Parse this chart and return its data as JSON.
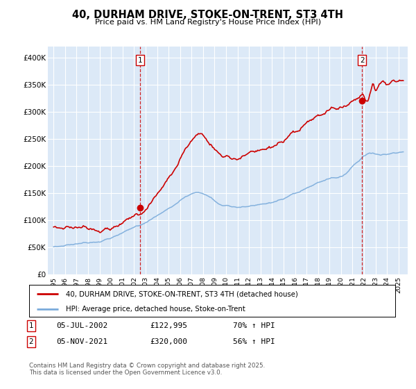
{
  "title": "40, DURHAM DRIVE, STOKE-ON-TRENT, ST3 4TH",
  "subtitle": "Price paid vs. HM Land Registry's House Price Index (HPI)",
  "background_color": "#ffffff",
  "plot_bg_color": "#dce9f7",
  "grid_color": "#ffffff",
  "red_line_color": "#cc0000",
  "blue_line_color": "#7aabdb",
  "ylim": [
    0,
    420000
  ],
  "yticks": [
    0,
    50000,
    100000,
    150000,
    200000,
    250000,
    300000,
    350000,
    400000
  ],
  "ytick_labels": [
    "£0",
    "£50K",
    "£100K",
    "£150K",
    "£200K",
    "£250K",
    "£300K",
    "£350K",
    "£400K"
  ],
  "xlim_start": 1994.5,
  "xlim_end": 2025.8,
  "xtick_years": [
    1995,
    1996,
    1997,
    1998,
    1999,
    2000,
    2001,
    2002,
    2003,
    2004,
    2005,
    2006,
    2007,
    2008,
    2009,
    2010,
    2011,
    2012,
    2013,
    2014,
    2015,
    2016,
    2017,
    2018,
    2019,
    2020,
    2021,
    2022,
    2023,
    2024,
    2025
  ],
  "marker1_x": 2002.5,
  "marker1_dot_y": 122995,
  "marker2_x": 2021.84,
  "marker2_dot_y": 320000,
  "legend_line1": "40, DURHAM DRIVE, STOKE-ON-TRENT, ST3 4TH (detached house)",
  "legend_line2": "HPI: Average price, detached house, Stoke-on-Trent",
  "note1_num": "1",
  "note1_date": "05-JUL-2002",
  "note1_price": "£122,995",
  "note1_hpi": "70% ↑ HPI",
  "note2_num": "2",
  "note2_date": "05-NOV-2021",
  "note2_price": "£320,000",
  "note2_hpi": "56% ↑ HPI",
  "footer": "Contains HM Land Registry data © Crown copyright and database right 2025.\nThis data is licensed under the Open Government Licence v3.0."
}
